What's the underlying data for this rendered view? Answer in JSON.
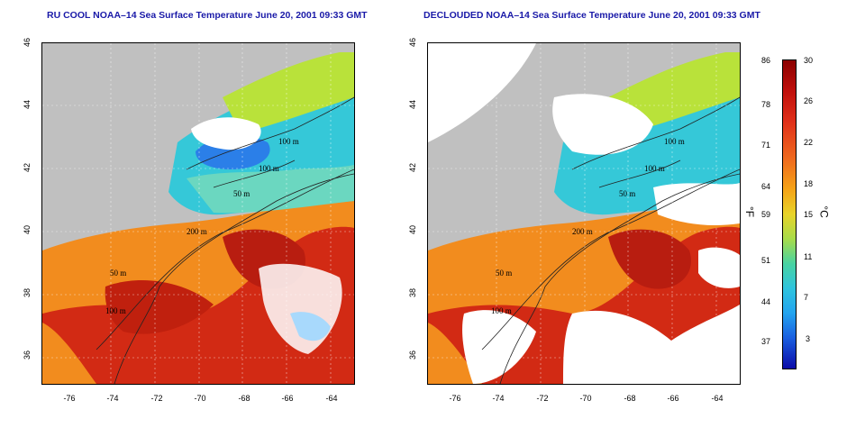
{
  "titles": {
    "left": "RU COOL NOAA–14 Sea Surface Temperature June 20, 2001 09:33 GMT",
    "right": "DECLOUDED NOAA–14 Sea Surface Temperature June 20, 2001 09:33 GMT"
  },
  "axes": {
    "y_ticks": [
      "46",
      "44",
      "42",
      "40",
      "38",
      "36"
    ],
    "x_ticks": [
      "-76",
      "-74",
      "-72",
      "-70",
      "-68",
      "-66",
      "-64"
    ]
  },
  "contour_labels": [
    "100 m",
    "100 m",
    "50 m",
    "200 m",
    "50 m",
    "100 m"
  ],
  "colorbar": {
    "fahrenheit_label": "°F",
    "celsius_label": "°C",
    "fahrenheit_ticks": [
      "86",
      "78",
      "71",
      "64",
      "59",
      "51",
      "44",
      "37"
    ],
    "celsius_ticks": [
      "30",
      "26",
      "22",
      "18",
      "15",
      "11",
      "7",
      "3"
    ]
  },
  "colors": {
    "land": "#c0c0c0",
    "cloud": "#ffffff",
    "warm": "#d22a14",
    "mid": "#f28c1e",
    "cool": "#35c8d8",
    "title": "#1a1aa8"
  }
}
